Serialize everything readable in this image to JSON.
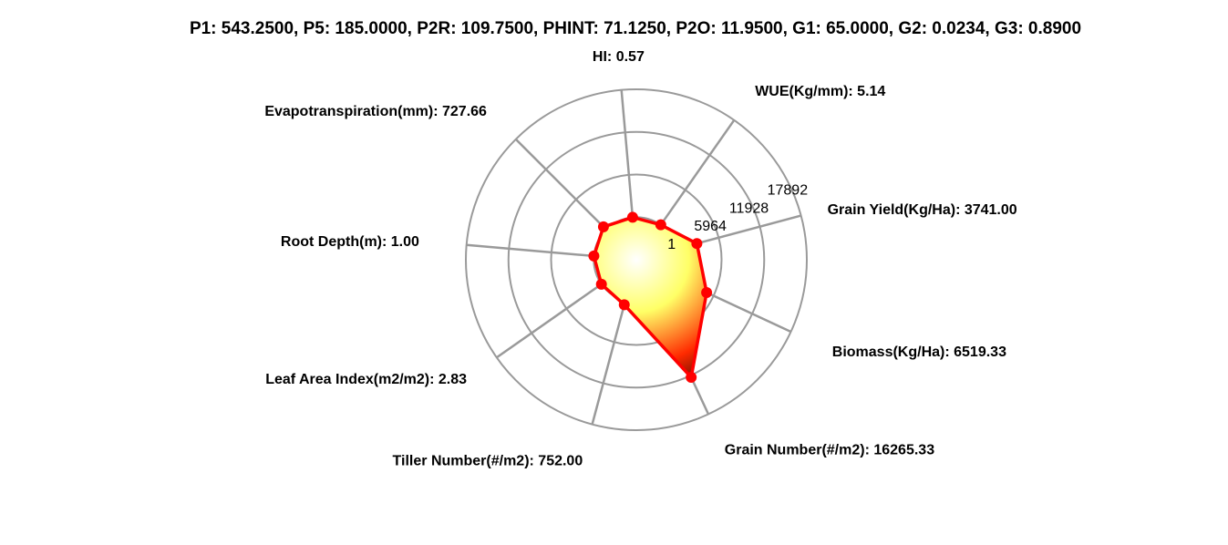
{
  "chart_data": {
    "type": "radar",
    "title": "P1: 543.2500, P5: 185.0000, P2R: 109.7500, PHINT: 71.1250, P2O: 11.9500, G1: 65.0000, G2: 0.0234, G3: 0.8900",
    "axes": [
      {
        "label": "Grain Yield(Kg/Ha): 3741.00",
        "value": 3741.0
      },
      {
        "label": "WUE(Kg/mm): 5.14",
        "value": 5.14
      },
      {
        "label": "HI: 0.57",
        "value": 0.57
      },
      {
        "label": "Evapotranspiration(mm): 727.66",
        "value": 727.66
      },
      {
        "label": "Root Depth(m): 1.00",
        "value": 1.0
      },
      {
        "label": "Leaf Area Index(m2/m2): 2.83",
        "value": 2.83
      },
      {
        "label": "Tiller Number(#/m2): 752.00",
        "value": 752.0
      },
      {
        "label": "Grain Number(#/m2): 16265.33",
        "value": 16265.33
      },
      {
        "label": "Biomass(Kg/Ha): 6519.33",
        "value": 6519.33
      }
    ],
    "radial_ticks": [
      "1",
      "5964",
      "11928",
      "17892"
    ],
    "rmin": 1,
    "rmax": 23856,
    "colors": {
      "series_line": "#ff0000",
      "marker": "#ff0000",
      "grid": "#9a9a9a",
      "fill_low": "#ffff66",
      "fill_mid": "#ff2a00",
      "fill_high": "#220000"
    }
  }
}
